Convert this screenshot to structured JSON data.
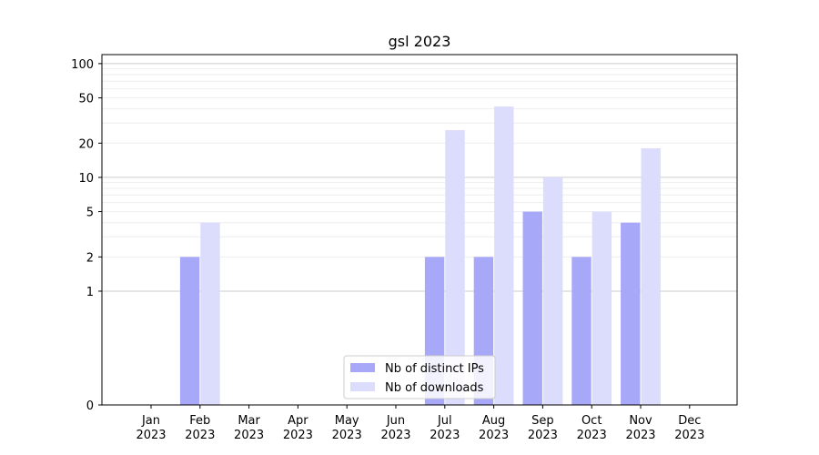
{
  "chart_data": {
    "type": "bar",
    "title": "gsl 2023",
    "xlabel": "",
    "ylabel": "",
    "yscale": "symlog",
    "ylim": [
      0,
      120
    ],
    "yticks": [
      0,
      1,
      2,
      5,
      10,
      20,
      50,
      100
    ],
    "categories": [
      "Jan\n2023",
      "Feb\n2023",
      "Mar\n2023",
      "Apr\n2023",
      "May\n2023",
      "Jun\n2023",
      "Jul\n2023",
      "Aug\n2023",
      "Sep\n2023",
      "Oct\n2023",
      "Nov\n2023",
      "Dec\n2023"
    ],
    "series": [
      {
        "name": "Nb of distinct IPs",
        "color": "#a8a8f8",
        "values": [
          0,
          2,
          0,
          0,
          0,
          0,
          2,
          2,
          5,
          2,
          4,
          0
        ]
      },
      {
        "name": "Nb of downloads",
        "color": "#dcdcfc",
        "values": [
          0,
          4,
          0,
          0,
          0,
          0,
          26,
          42,
          10,
          5,
          18,
          0
        ]
      }
    ],
    "legend": {
      "placement": "lower-center"
    },
    "grid": true
  }
}
